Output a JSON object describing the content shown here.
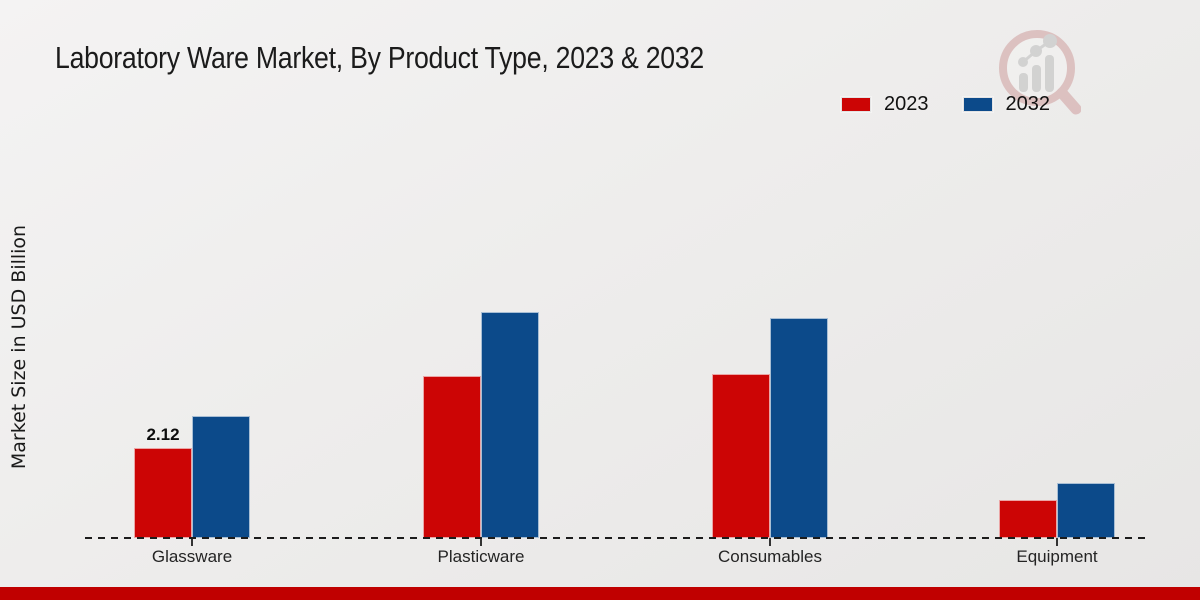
{
  "header": {
    "title": "Laboratory Ware Market, By Product Type, 2023 & 2032"
  },
  "legend": {
    "items": [
      {
        "label": "2023",
        "color": "#cc0505"
      },
      {
        "label": "2032",
        "color": "#0c4a8a"
      }
    ]
  },
  "chart_data": {
    "type": "bar",
    "title": "Laboratory Ware Market, By Product Type, 2023 & 2032",
    "categories": [
      "Glassware",
      "Plasticware",
      "Consumables",
      "Equipment"
    ],
    "series": [
      {
        "name": "2023",
        "color": "#cc0505",
        "values": [
          2.12,
          3.82,
          3.87,
          0.9
        ],
        "labels": [
          "2.12",
          null,
          null,
          null
        ]
      },
      {
        "name": "2032",
        "color": "#0c4a8a",
        "values": [
          2.88,
          5.33,
          5.19,
          1.3
        ],
        "labels": [
          null,
          null,
          null,
          null
        ]
      }
    ],
    "xlabel": "",
    "ylabel": "Market Size in USD Billion",
    "ylim": [
      0,
      6
    ],
    "grid": false,
    "y_axis_ticks_visible": false,
    "baseline_style": "dashed",
    "legend_position": "top-right"
  },
  "watermark": {
    "icon": "market-research-magnifier-logo",
    "glass_color": "#cf9e9e",
    "bars_color": "#bdbdbd"
  },
  "footer": {
    "accent_color": "#c00000"
  }
}
